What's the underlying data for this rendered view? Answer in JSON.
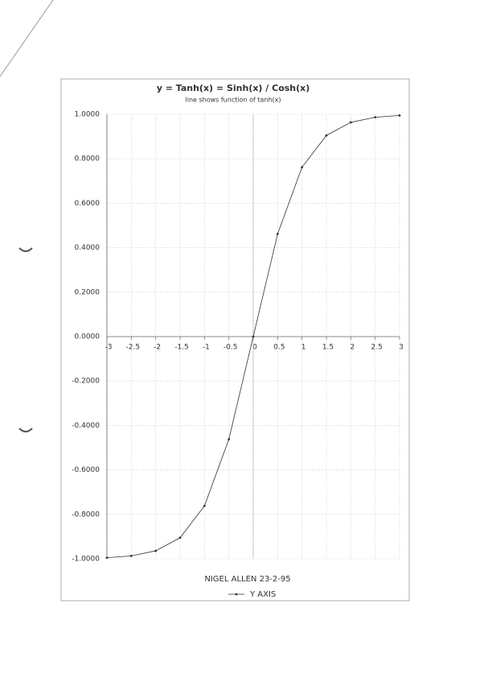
{
  "chart_data": {
    "type": "line",
    "title": "y = Tanh(x) = Sinh(x) / Cosh(x)",
    "subtitle": "line shows function of tanh(x)",
    "note": "NIGEL ALLEN 23-2-95",
    "x": [
      -3,
      -2.5,
      -2,
      -1.5,
      -1,
      -0.5,
      0,
      0.5,
      1,
      1.5,
      2,
      2.5,
      3
    ],
    "series": [
      {
        "name": "Y AXIS",
        "color": "#333333",
        "values": [
          -0.995,
          -0.987,
          -0.964,
          -0.905,
          -0.762,
          -0.462,
          0,
          0.462,
          0.762,
          0.905,
          0.964,
          0.987,
          0.995
        ]
      }
    ],
    "xlim": [
      -3,
      3
    ],
    "xticks": [
      -3,
      -2.5,
      -2,
      -1.5,
      -1,
      -0.5,
      0,
      0.5,
      1,
      1.5,
      2,
      2.5,
      3
    ],
    "ylim": [
      -1,
      1
    ],
    "yticks": [
      {
        "value": 1,
        "label": "1.0000"
      },
      {
        "value": 0.8,
        "label": "0.8000"
      },
      {
        "value": 0.6,
        "label": "0.6000"
      },
      {
        "value": 0.4,
        "label": "0.4000"
      },
      {
        "value": 0.2,
        "label": "0.2000"
      },
      {
        "value": 0,
        "label": "0.0000"
      },
      {
        "value": -0.2,
        "label": "-0.2000"
      },
      {
        "value": -0.4,
        "label": "-0.4000"
      },
      {
        "value": -0.6,
        "label": "-0.6000"
      },
      {
        "value": -0.8,
        "label": "-0.8000"
      },
      {
        "value": -1,
        "label": "-1.0000"
      }
    ],
    "grid": true,
    "legend": "bottom"
  }
}
